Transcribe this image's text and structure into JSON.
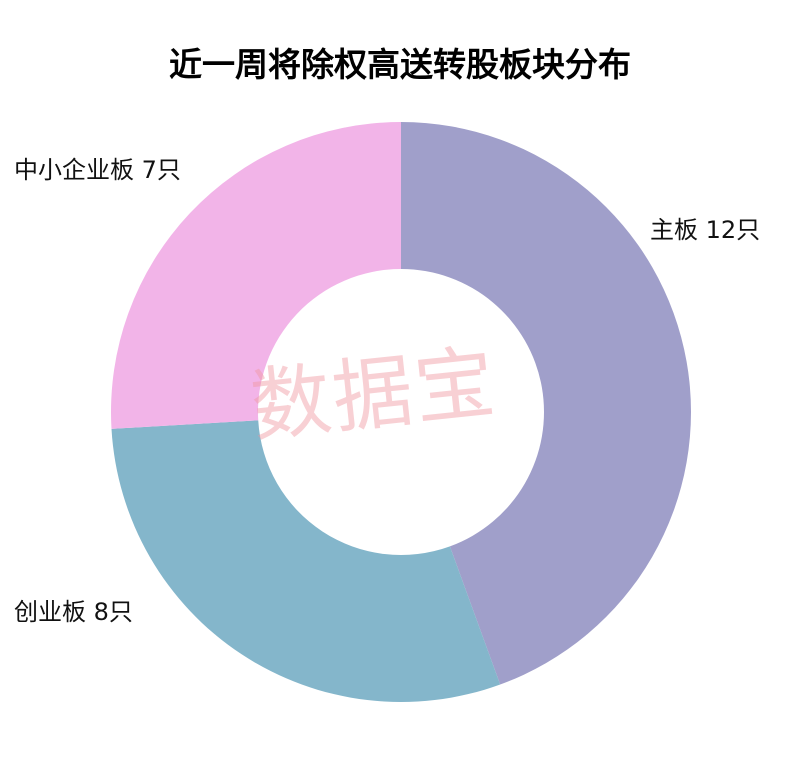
{
  "chart_data": {
    "type": "pie",
    "style": "donut",
    "title": "近一周将除权高送转股板块分布",
    "categories": [
      "主板",
      "创业板",
      "中小企业板"
    ],
    "values": [
      12,
      8,
      7
    ],
    "unit": "只",
    "data_labels": [
      "主板  12只",
      "创业板 8只",
      "中小企业板 7只"
    ],
    "colors": [
      "#a09fca",
      "#84b6cb",
      "#f2b4e8"
    ],
    "legend": "none"
  },
  "watermark": "数据宝"
}
